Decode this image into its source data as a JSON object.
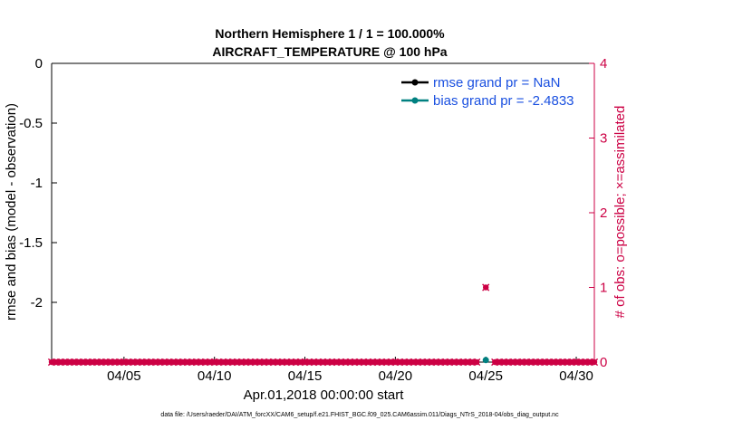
{
  "chart_data": {
    "type": "line",
    "title": "Northern Hemisphere 1 / 1 = 100.000%",
    "subtitle": "AIRCRAFT_TEMPERATURE @ 100 hPa",
    "xlabel": "Apr.01,2018 00:00:00 start",
    "ylabel": "rmse and bias (model - observation)",
    "y2label": "# of obs: o=possible; ×=assimilated",
    "footer": "data file: /Users/raeder/DAI/ATM_forcXX/CAM6_setup/f.e21.FHIST_BGC.f09_025.CAM6assim.011/Diags_NTrS_2018-04/obs_diag_output.nc",
    "x_unit": "day of April 2018",
    "xlim": [
      1,
      31
    ],
    "x_ticks": [
      5,
      10,
      15,
      20,
      25,
      30
    ],
    "x_tick_labels": [
      "04/05",
      "04/10",
      "04/15",
      "04/20",
      "04/25",
      "04/30"
    ],
    "ylim": [
      -2.5,
      0
    ],
    "y_ticks": [
      0,
      -0.5,
      -1,
      -1.5,
      -2
    ],
    "y_tick_labels": [
      "0",
      "-0.5",
      "-1",
      "-1.5",
      "-2"
    ],
    "y2lim": [
      0,
      4
    ],
    "y2_ticks": [
      0,
      1,
      2,
      3,
      4
    ],
    "y2_tick_labels": [
      "0",
      "1",
      "2",
      "3",
      "4"
    ],
    "grid": false,
    "legend_position": "top-right",
    "series": [
      {
        "name": "rmse grand pr = NaN",
        "color": "#000000",
        "axis": "left",
        "marker": "circle",
        "points": []
      },
      {
        "name": "bias grand pr = -2.4833",
        "color": "#008080",
        "axis": "left",
        "marker": "circle",
        "points": [
          [
            25,
            -2.4833
          ]
        ]
      },
      {
        "name": "obs possible",
        "color": "#cc0044",
        "axis": "right",
        "marker": "circle",
        "x_start": 1,
        "x_end": 31,
        "x_step": 0.25,
        "values_default": 0,
        "special": [
          [
            25,
            1
          ]
        ],
        "gap": [
          [
            24.75,
            0
          ],
          [
            25.25,
            0
          ]
        ]
      },
      {
        "name": "obs assimilated",
        "color": "#cc0044",
        "axis": "right",
        "marker": "x",
        "x_start": 1,
        "x_end": 31,
        "x_step": 0.25,
        "values_default": 0,
        "special": [
          [
            25,
            1
          ]
        ],
        "gap": [
          [
            24.75,
            0
          ],
          [
            25.25,
            0
          ]
        ]
      }
    ],
    "colors": {
      "axis_left": "#000000",
      "axis_right": "#cc0044",
      "legend_text": "#1a50e0"
    }
  }
}
